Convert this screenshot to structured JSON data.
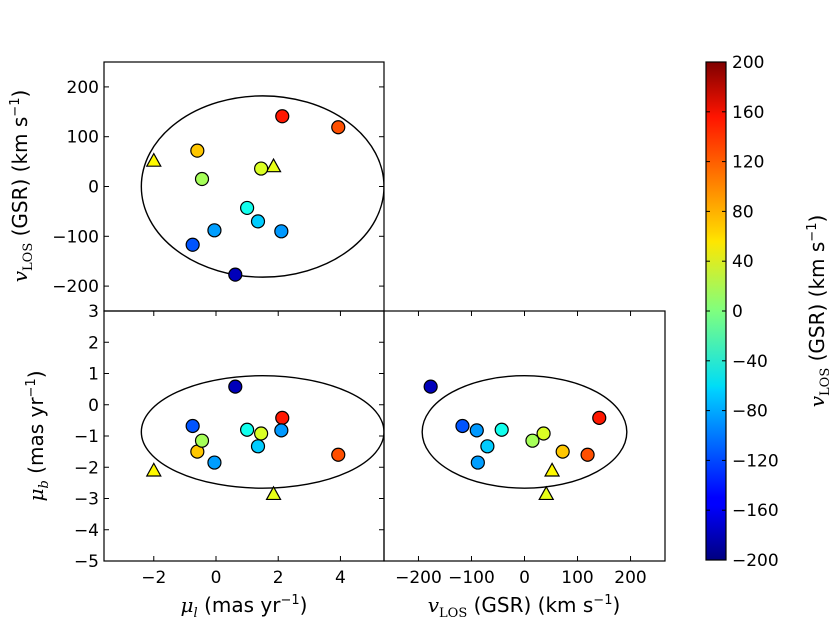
{
  "chart_data": {
    "type": "scatter",
    "color_scale": {
      "min": -200,
      "max": 200,
      "ticks": [
        -200,
        -160,
        -120,
        -80,
        -40,
        0,
        40,
        80,
        120,
        160,
        200
      ],
      "tick_labels": [
        "−200",
        "−160",
        "−120",
        "−80",
        "−40",
        "0",
        "40",
        "80",
        "120",
        "160",
        "200"
      ],
      "label_main": "v",
      "label_sub": "LOS",
      "label_rest": " (GSR) (km s",
      "label_sup": "−1",
      "label_end": ")",
      "colormap": "jet"
    },
    "stars": [
      {
        "mu_l": 2.13,
        "mu_b": -0.42,
        "v": 141,
        "marker": "circle"
      },
      {
        "mu_l": 3.93,
        "mu_b": -1.6,
        "v": 119,
        "marker": "circle"
      },
      {
        "mu_l": -0.6,
        "mu_b": -1.5,
        "v": 72,
        "marker": "circle"
      },
      {
        "mu_l": -2.0,
        "mu_b": -2.1,
        "v": 52,
        "marker": "triangle"
      },
      {
        "mu_l": 1.85,
        "mu_b": -2.85,
        "v": 41,
        "marker": "triangle"
      },
      {
        "mu_l": 1.45,
        "mu_b": -0.92,
        "v": 36,
        "marker": "circle"
      },
      {
        "mu_l": -0.45,
        "mu_b": -1.15,
        "v": 15,
        "marker": "circle"
      },
      {
        "mu_l": 1.0,
        "mu_b": -0.8,
        "v": -43,
        "marker": "circle"
      },
      {
        "mu_l": 1.35,
        "mu_b": -1.33,
        "v": -70,
        "marker": "circle"
      },
      {
        "mu_l": -0.05,
        "mu_b": -1.85,
        "v": -88,
        "marker": "circle"
      },
      {
        "mu_l": 2.1,
        "mu_b": -0.82,
        "v": -90,
        "marker": "circle"
      },
      {
        "mu_l": -0.75,
        "mu_b": -0.68,
        "v": -117,
        "marker": "circle"
      },
      {
        "mu_l": 0.62,
        "mu_b": 0.58,
        "v": -177,
        "marker": "circle"
      }
    ],
    "ellipses": {
      "top_left": {
        "center": [
          1.5,
          0
        ],
        "semi_axes": [
          3.9,
          182
        ]
      },
      "bottom_left": {
        "center": [
          1.5,
          -0.87
        ],
        "semi_axes": [
          3.9,
          1.8
        ]
      },
      "bottom_right": {
        "center": [
          0,
          -0.87
        ],
        "semi_axes": [
          193,
          1.8
        ]
      }
    },
    "panels": {
      "top_left": {
        "x_field": "mu_l",
        "y_field": "v",
        "xlim": [
          -3.6,
          5.4
        ],
        "ylim": [
          -250,
          250
        ],
        "yticks": [
          -200,
          -100,
          0,
          100,
          200
        ],
        "ytick_labels": [
          "−200",
          "−100",
          "0",
          "100",
          "200"
        ],
        "ylabel_main": "v",
        "ylabel_sub": "LOS",
        "ylabel_rest": " (GSR) (km s",
        "ylabel_sup": "−1",
        "ylabel_end": ")"
      },
      "bottom_left": {
        "x_field": "mu_l",
        "y_field": "mu_b",
        "xlim": [
          -3.6,
          5.4
        ],
        "ylim": [
          -5,
          3
        ],
        "xticks": [
          -2,
          0,
          2,
          4
        ],
        "xtick_labels": [
          "−2",
          "0",
          "2",
          "4"
        ],
        "yticks": [
          -5,
          -4,
          -3,
          -2,
          -1,
          0,
          1,
          2,
          3
        ],
        "ytick_labels": [
          "−5",
          "−4",
          "−3",
          "−2",
          "−1",
          "0",
          "1",
          "2",
          "3"
        ],
        "xlabel_main": "μ",
        "xlabel_sub": "l",
        "xlabel_rest": " (mas yr",
        "xlabel_sup": "−1",
        "xlabel_end": ")",
        "ylabel_main": "μ",
        "ylabel_sub": "b",
        "ylabel_rest": " (mas yr",
        "ylabel_sup": "−1",
        "ylabel_end": ")"
      },
      "bottom_right": {
        "x_field": "v",
        "y_field": "mu_b",
        "xlim": [
          -265,
          265
        ],
        "ylim": [
          -5,
          3
        ],
        "xticks": [
          -200,
          -100,
          0,
          100,
          200
        ],
        "xtick_labels": [
          "−200",
          "−100",
          "0",
          "100",
          "200"
        ],
        "xlabel_main": "v",
        "xlabel_sub": "LOS",
        "xlabel_rest": " (GSR) (km s",
        "xlabel_sup": "−1",
        "xlabel_end": ")"
      }
    }
  }
}
